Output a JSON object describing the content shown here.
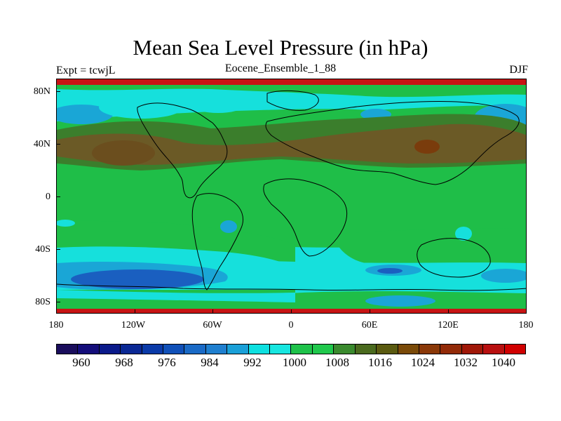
{
  "title": "Mean Sea Level Pressure (in hPa)",
  "left_label": "Expt = tcwjL",
  "center_label": "Eocene_Ensemble_1_88",
  "right_label": "DJF",
  "lat_labels": [
    "80N",
    "40N",
    "0",
    "40S",
    "80S"
  ],
  "lon_labels": [
    "180",
    "120W",
    "60W",
    "0",
    "60E",
    "120E",
    "180"
  ],
  "colorbar": {
    "colors": [
      "#1a0d5c",
      "#140d7a",
      "#0a1a8a",
      "#0a2894",
      "#0a3aa8",
      "#1050b8",
      "#1a6ac6",
      "#1f7fcf",
      "#1aa0d8",
      "#0ee0e0",
      "#18e6e0",
      "#1ec24a",
      "#20c84c",
      "#3a8a2e",
      "#4a6a1e",
      "#5a5a10",
      "#7a4a08",
      "#8a3808",
      "#922a08",
      "#a01808",
      "#b81010",
      "#d00000"
    ],
    "labels": [
      "960",
      "968",
      "976",
      "984",
      "992",
      "1000",
      "1008",
      "1016",
      "1024",
      "1032",
      "1040"
    ]
  },
  "fill_colors": {
    "ocean_low": "#16e0dc",
    "green": "#1fbe48",
    "dark_green": "#3b7e2c",
    "brown": "#6b5a26",
    "dark_brown": "#7a3c0c",
    "blue": "#1aa6d6",
    "deep_blue": "#1a5fc0",
    "red_band": "#c81414"
  }
}
